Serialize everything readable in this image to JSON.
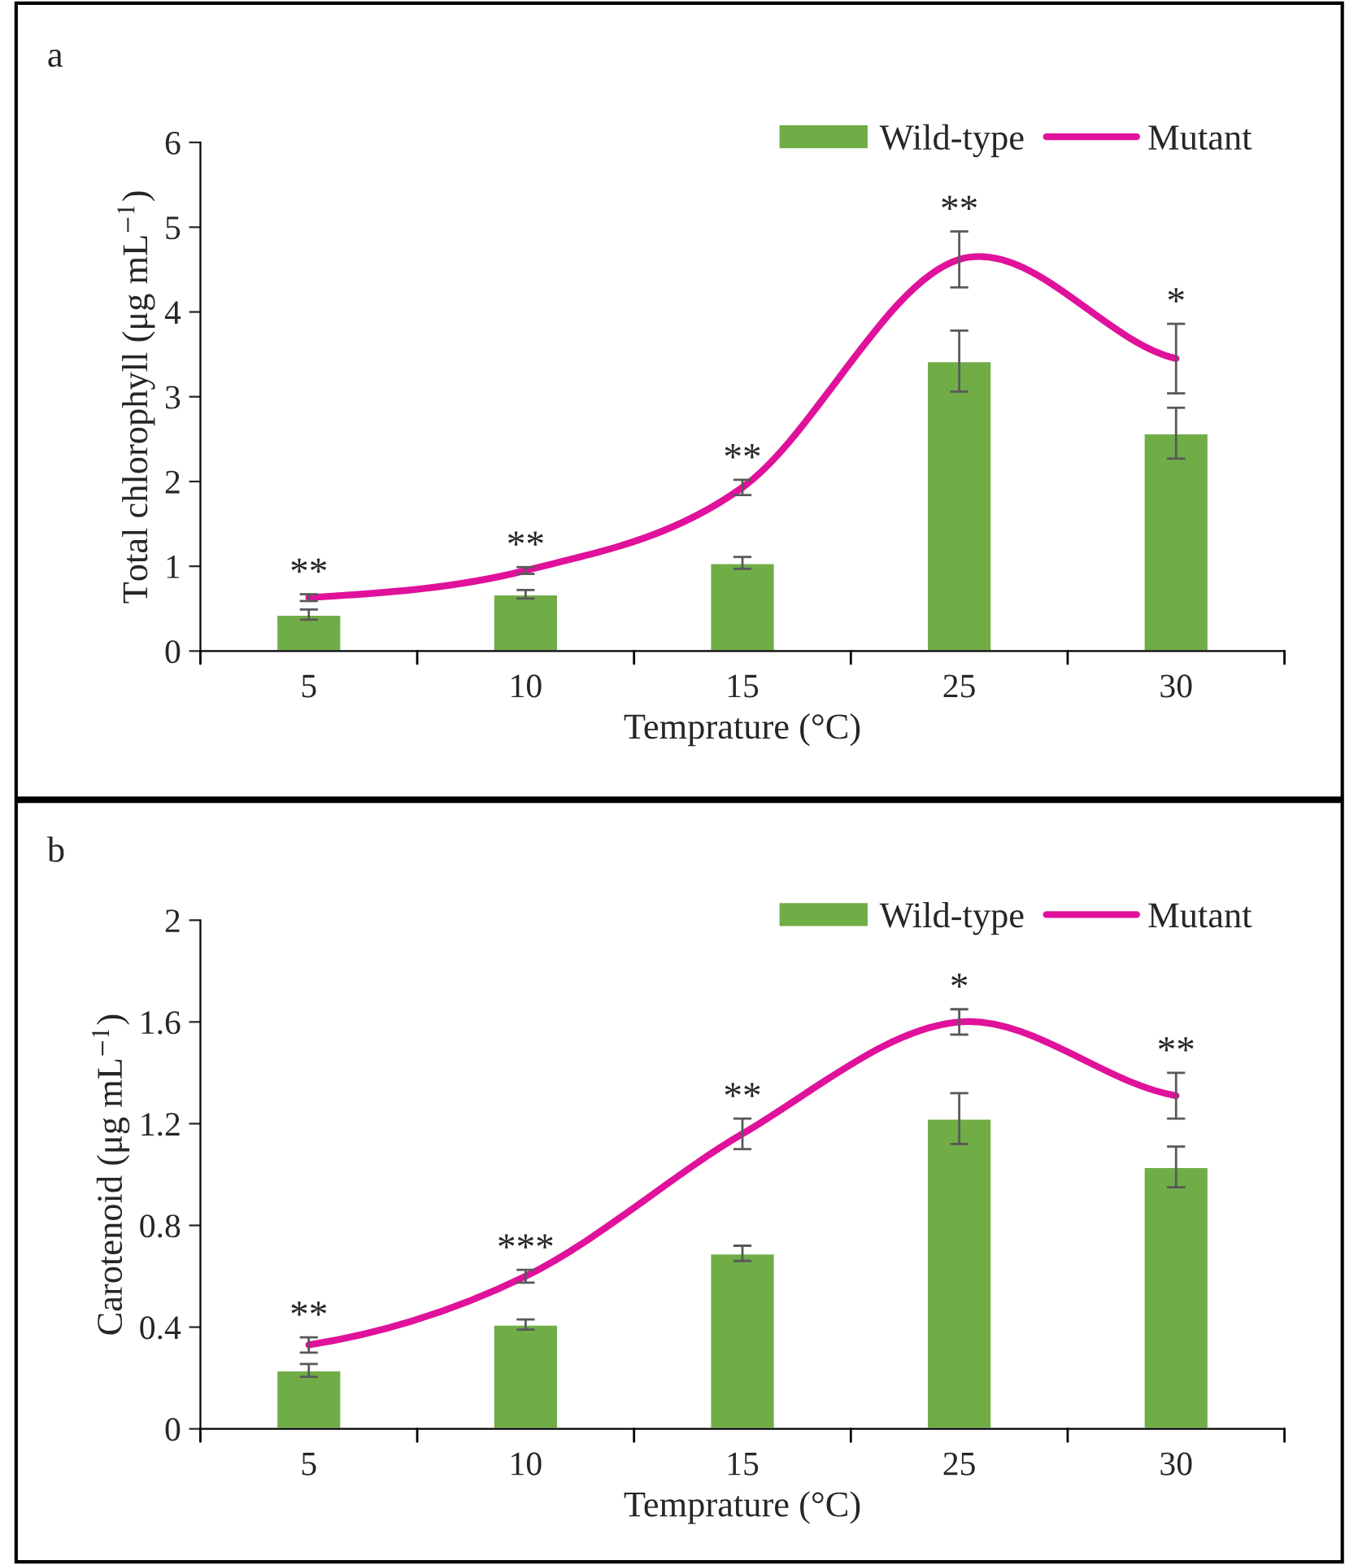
{
  "chart_data": [
    {
      "type": "bar",
      "xlabel": "Temprature (°C)",
      "ylabel": "Total chlorophyll (μg mL$^{−1}$)",
      "categories": [
        "5",
        "10",
        "15",
        "25",
        "30"
      ],
      "ylim": [
        0,
        6
      ],
      "yticks": [
        0,
        1,
        2,
        3,
        4,
        5,
        6
      ],
      "grid": false,
      "legend": "top right",
      "series": [
        {
          "name": "Wild-type",
          "color": "#70ad47",
          "values": [
            0.43,
            0.67,
            1.04,
            3.42,
            2.57
          ],
          "errors": [
            0.06,
            0.05,
            0.07,
            0.36,
            0.3
          ]
        },
        {
          "name": "Mutant",
          "type": "line",
          "color": "#e0119b",
          "values": [
            0.63,
            0.95,
            1.93,
            4.62,
            3.45
          ],
          "errors": [
            0.04,
            0.04,
            0.09,
            0.33,
            0.41
          ]
        }
      ],
      "annotations": [
        {
          "text": "a"
        },
        {
          "text": "**",
          "x": "5",
          "y": 0.67
        },
        {
          "text": "**",
          "x": "10",
          "y": 0.99
        },
        {
          "text": "**",
          "x": "15",
          "y": 2.02
        },
        {
          "text": "**",
          "x": "25",
          "y": 4.95
        },
        {
          "text": "*",
          "x": "30",
          "y": 3.86
        }
      ]
    },
    {
      "type": "bar",
      "xlabel": "Temprature (°C)",
      "ylabel": "Carotenoid (μg mL$^{−1}$)",
      "categories": [
        "5",
        "10",
        "15",
        "25",
        "30"
      ],
      "ylim": [
        0,
        2
      ],
      "yticks": [
        0,
        0.4,
        0.8,
        1.2,
        1.6,
        2
      ],
      "grid": false,
      "legend": "top right",
      "series": [
        {
          "name": "Wild-type",
          "color": "#70ad47",
          "values": [
            0.23,
            0.41,
            0.69,
            1.22,
            1.03
          ],
          "errors": [
            0.025,
            0.02,
            0.03,
            0.1,
            0.08
          ]
        },
        {
          "name": "Mutant",
          "type": "line",
          "color": "#e0119b",
          "values": [
            0.33,
            0.6,
            1.16,
            1.6,
            1.31
          ],
          "errors": [
            0.03,
            0.025,
            0.06,
            0.05,
            0.09
          ]
        }
      ],
      "annotations": [
        {
          "text": "b"
        },
        {
          "text": "**",
          "x": "5",
          "y": 0.36
        },
        {
          "text": "***",
          "x": "10",
          "y": 0.625
        },
        {
          "text": "**",
          "x": "15",
          "y": 1.22
        },
        {
          "text": "*",
          "x": "25",
          "y": 1.65
        },
        {
          "text": "**",
          "x": "30",
          "y": 1.4
        }
      ]
    }
  ]
}
